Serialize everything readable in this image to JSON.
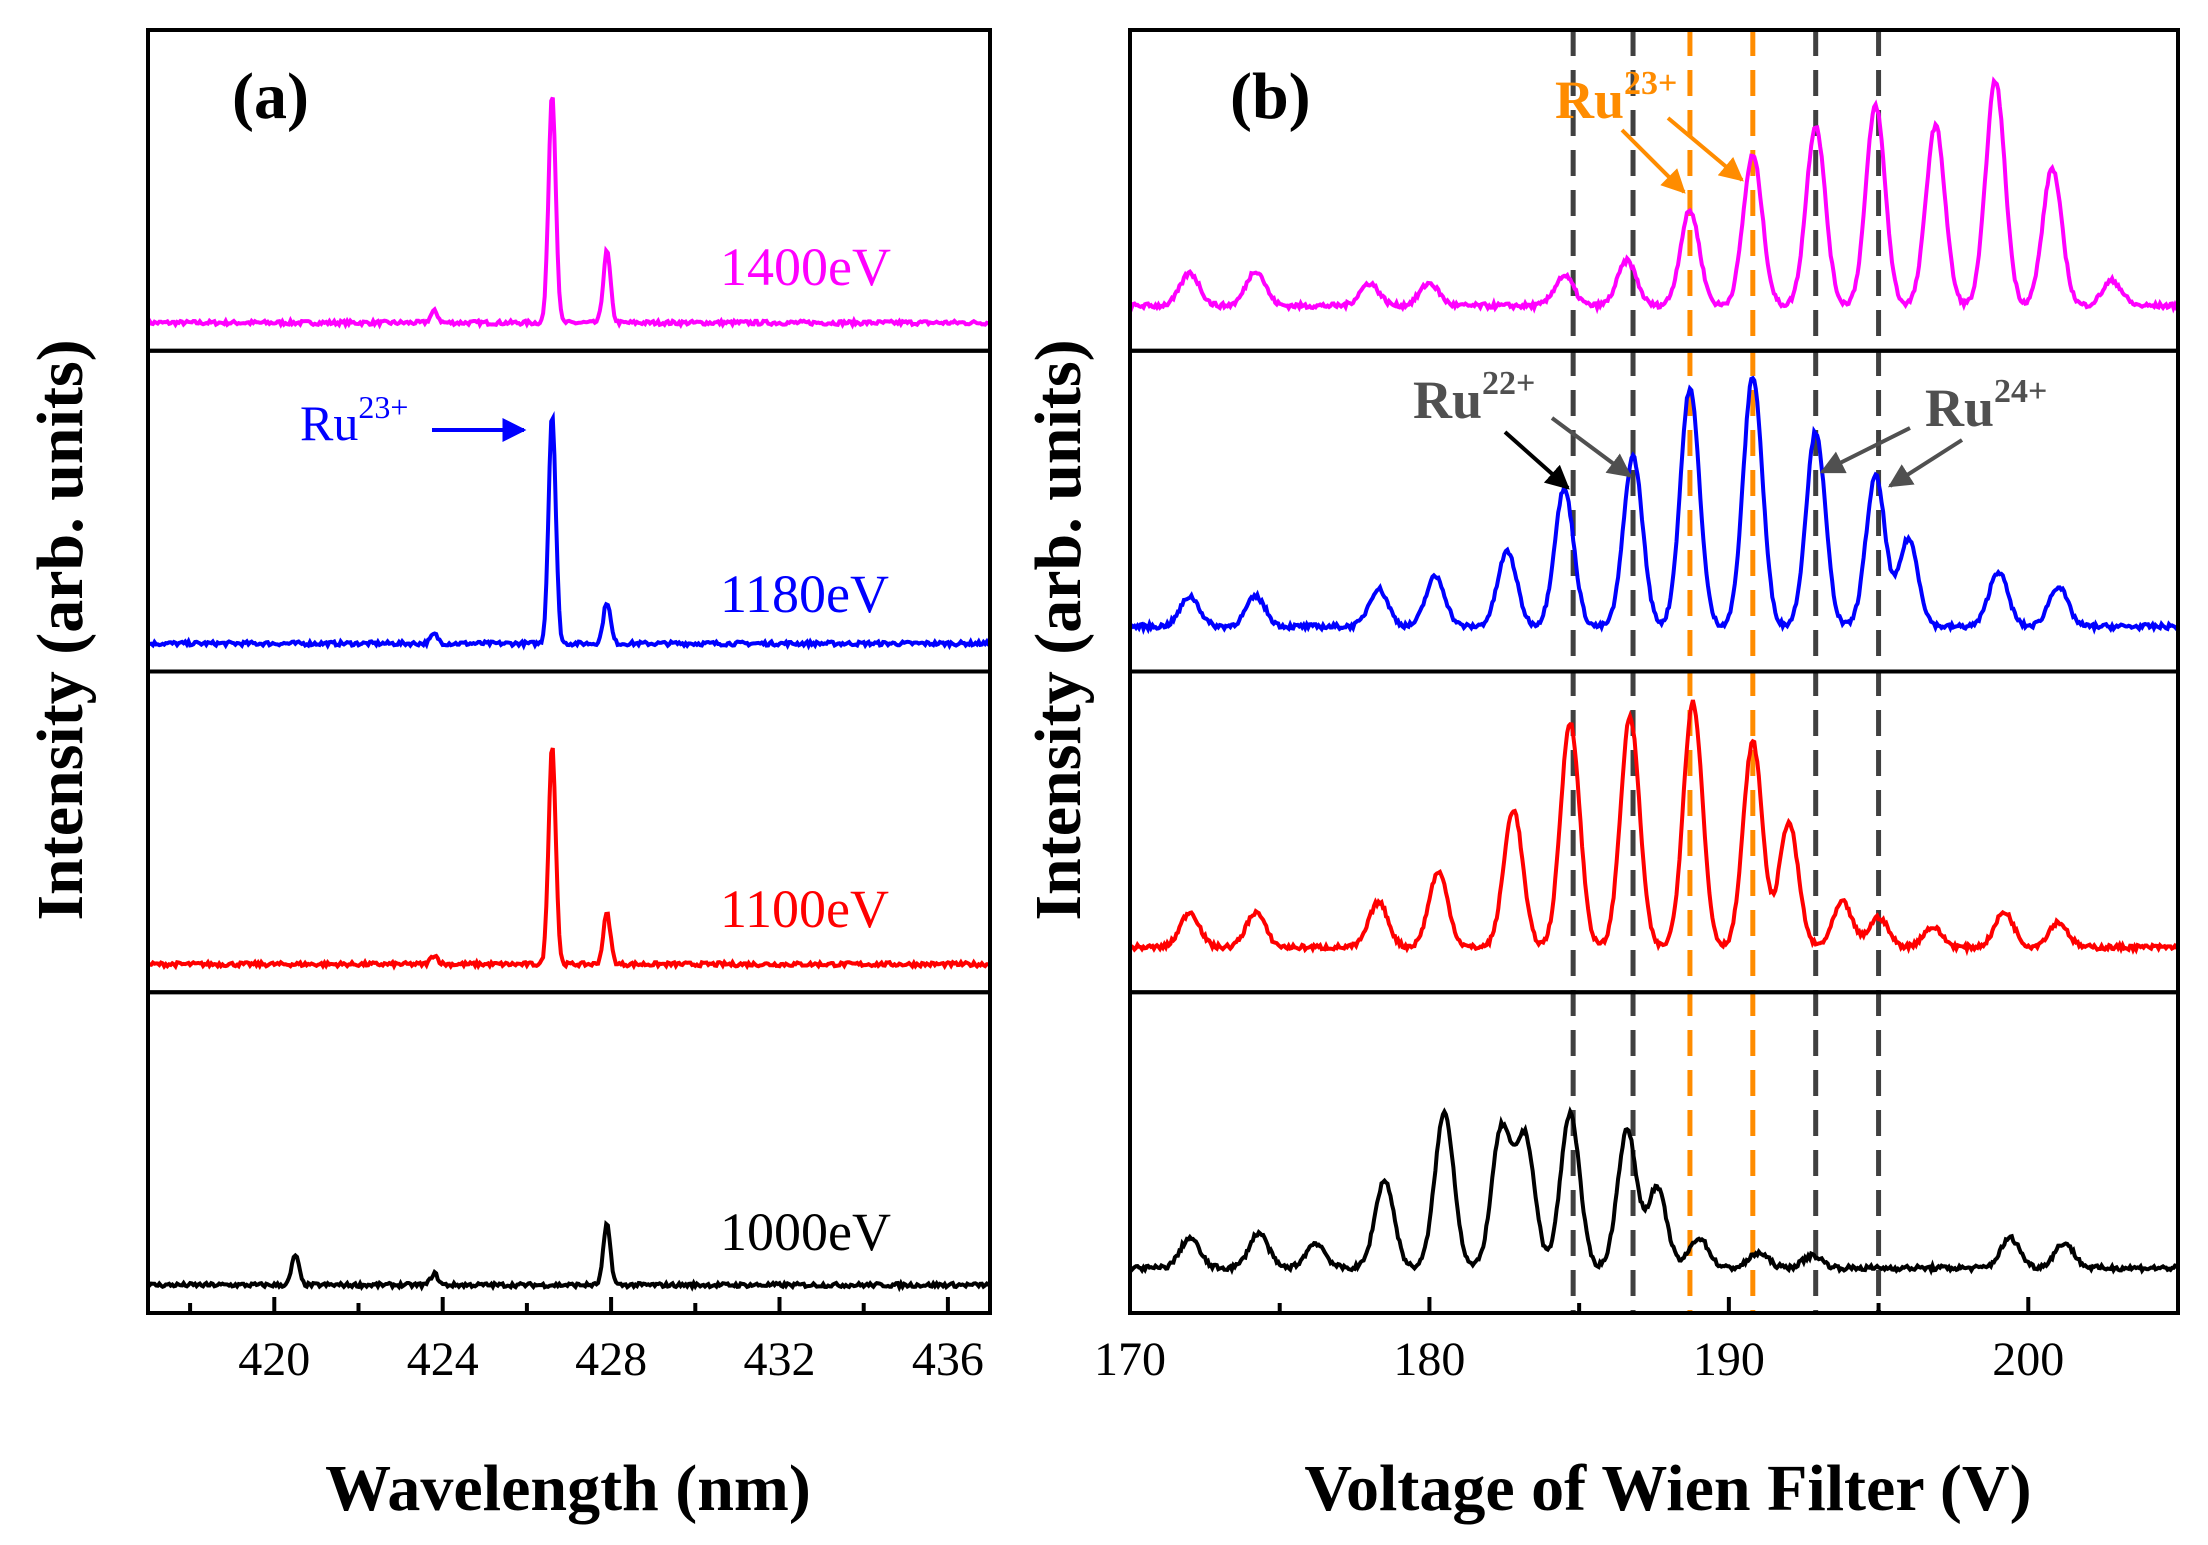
{
  "figure": {
    "ylabel": "Intensity (arb. units)"
  },
  "chart_data": [
    {
      "panel": "(a)",
      "type": "line",
      "xlabel": "Wavelength (nm)",
      "ylabel": "Intensity (arb. units)",
      "xlim": [
        417,
        437
      ],
      "xticks": [
        420,
        424,
        428,
        432,
        436
      ],
      "stacked": true,
      "series": [
        {
          "name": "1400eV",
          "color": "#ff00ff",
          "peaks": [
            [
              423.8,
              0.05
            ],
            [
              426.6,
              1.0
            ],
            [
              427.9,
              0.31
            ]
          ],
          "label_ref": "panels.a.labels.0"
        },
        {
          "name": "1180eV",
          "color": "#0000ff",
          "peaks": [
            [
              423.8,
              0.04
            ],
            [
              426.6,
              1.0
            ],
            [
              427.9,
              0.18
            ]
          ],
          "label_ref": "panels.a.labels.1"
        },
        {
          "name": "1100eV",
          "color": "#ff0000",
          "peaks": [
            [
              423.8,
              0.04
            ],
            [
              426.6,
              0.95
            ],
            [
              427.9,
              0.22
            ]
          ],
          "label_ref": "panels.a.labels.2"
        },
        {
          "name": "1000eV",
          "color": "#000000",
          "peaks": [
            [
              420.5,
              0.13
            ],
            [
              423.8,
              0.05
            ],
            [
              427.9,
              0.26
            ]
          ],
          "label_ref": "panels.a.labels.3"
        }
      ],
      "annotations": [
        {
          "text": "Ru23+",
          "color": "#0000ff",
          "points_to": 426.6,
          "series": "1180eV"
        }
      ]
    },
    {
      "panel": "(b)",
      "type": "line",
      "xlabel": "Voltage of Wien Filter (V)",
      "ylabel": "Intensity (arb. units)",
      "xlim": [
        170,
        205
      ],
      "xticks": [
        170,
        180,
        190,
        200
      ],
      "stacked": true,
      "series": [
        {
          "name": "magenta",
          "color": "#ff00ff"
        },
        {
          "name": "blue",
          "color": "#0000ff"
        },
        {
          "name": "red",
          "color": "#ff0000"
        },
        {
          "name": "black",
          "color": "#000000"
        }
      ],
      "reference_lines": [
        {
          "x": 184.8,
          "color": "#404040",
          "group": "Ru22+"
        },
        {
          "x": 186.8,
          "color": "#404040",
          "group": "Ru22+"
        },
        {
          "x": 188.7,
          "color": "#ff8c00",
          "group": "Ru23+"
        },
        {
          "x": 190.8,
          "color": "#ff8c00",
          "group": "Ru23+"
        },
        {
          "x": 192.9,
          "color": "#404040",
          "group": "Ru24+"
        },
        {
          "x": 195.0,
          "color": "#404040",
          "group": "Ru24+"
        }
      ],
      "annotations": [
        {
          "text": "Ru23+",
          "color": "#ff8c00"
        },
        {
          "text": "Ru22+",
          "color": "#505050"
        },
        {
          "text": "Ru24+",
          "color": "#505050"
        }
      ]
    }
  ],
  "panels": {
    "a": {
      "label": "(a)",
      "xlabel": "Wavelength (nm)",
      "ticks": [
        "420",
        "424",
        "428",
        "432",
        "436"
      ],
      "labels": [
        "1400eV",
        "1180eV",
        "1100eV",
        "1000eV"
      ],
      "annotation": {
        "base": "Ru",
        "sup": "23+"
      }
    },
    "b": {
      "label": "(b)",
      "xlabel": "Voltage of Wien Filter (V)",
      "ticks": [
        "170",
        "180",
        "190",
        "200"
      ],
      "annotations": [
        {
          "base": "Ru",
          "sup": "23+"
        },
        {
          "base": "Ru",
          "sup": "22+"
        },
        {
          "base": "Ru",
          "sup": "24+"
        }
      ]
    }
  },
  "colors": {
    "magenta": "#ff00ff",
    "blue": "#0000ff",
    "red": "#ff0000",
    "black": "#000000",
    "orange": "#ff8c00",
    "gray": "#404040"
  }
}
